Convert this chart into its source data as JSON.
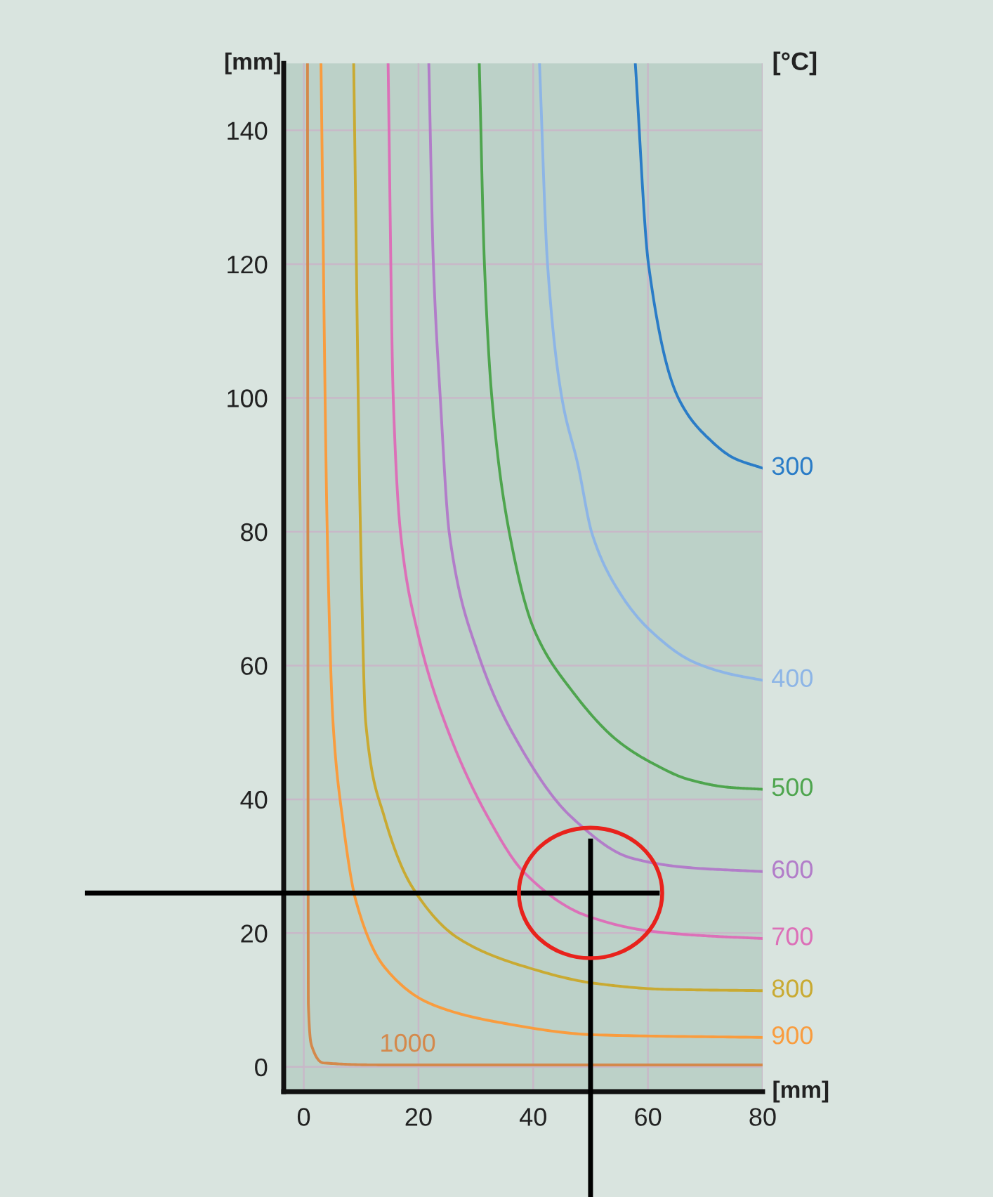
{
  "chart_data": {
    "type": "line",
    "xlabel": "[mm]",
    "ylabel": "[mm]",
    "annotations": [
      "[°C]"
    ],
    "xlim": [
      -3.5,
      80
    ],
    "ylim": [
      -3.7,
      150
    ],
    "xticks": [
      0,
      20,
      40,
      60,
      80
    ],
    "yticks": [
      0,
      20,
      40,
      60,
      80,
      100,
      120,
      140
    ],
    "ref_lines": [
      {
        "axis": "y",
        "value": 26,
        "color": "#000000"
      },
      {
        "axis": "x",
        "value": 50,
        "color": "#000000"
      }
    ],
    "grid": true,
    "legend": false,
    "marker": "none",
    "line_style": "solid",
    "series": [
      {
        "name": "300",
        "color": "#2a7cc7",
        "x": [
          57.8,
          60.1,
          65.3,
          71,
          75,
          80
        ],
        "values": [
          150,
          120,
          100,
          93.6,
          91,
          89.5
        ]
      },
      {
        "name": "400",
        "color": "#8db5e6",
        "x": [
          41.1,
          42.5,
          45,
          47.8,
          50.3,
          55,
          60.1,
          67.8,
          74,
          80
        ],
        "values": [
          150,
          120,
          100,
          90,
          79.6,
          71,
          65.5,
          60.6,
          58.8,
          57.8
        ]
      },
      {
        "name": "500",
        "color": "#4ea54e",
        "x": [
          30.6,
          31.5,
          32.8,
          35.9,
          40.1,
          46.6,
          54.8,
          61,
          67,
          74,
          80
        ],
        "values": [
          150,
          120,
          100,
          79.6,
          65.5,
          56.4,
          48.7,
          45.3,
          43,
          41.8,
          41.5
        ]
      },
      {
        "name": "600",
        "color": "#b27dc9",
        "x": [
          21.8,
          22.6,
          23.8,
          25.4,
          30.3,
          36.8,
          46.6,
          57.2,
          67,
          80
        ],
        "values": [
          150,
          120,
          100,
          79.6,
          62,
          49.3,
          37.4,
          31.2,
          29.8,
          29.2
        ]
      },
      {
        "name": "700",
        "color": "#dc70b8",
        "x": [
          14.7,
          15.6,
          16.9,
          19.7,
          24.6,
          32,
          38.5,
          49,
          60.4,
          70,
          80
        ],
        "values": [
          150,
          100,
          79.6,
          65.5,
          51.5,
          37.5,
          29,
          22.7,
          20.3,
          19.6,
          19.2
        ]
      },
      {
        "name": "800",
        "color": "#c9aa32",
        "x": [
          8.7,
          9.9,
          10.8,
          14,
          18.9,
          27,
          38.5,
          50.7,
          62.9,
          80
        ],
        "values": [
          150,
          79.6,
          51.5,
          37.5,
          26.9,
          19.2,
          15,
          12.5,
          11.6,
          11.4
        ]
      },
      {
        "name": "900",
        "color": "#f99c3e",
        "x": [
          3,
          4.1,
          5.1,
          6.7,
          9.1,
          14,
          22.2,
          34.4,
          50.7,
          80
        ],
        "values": [
          150,
          79.6,
          51.5,
          37.5,
          24.8,
          15,
          9.4,
          6.6,
          4.8,
          4.4
        ]
      },
      {
        "name": "1000",
        "color": "#d4894c",
        "x": [
          0.65,
          0.8,
          1.4,
          3.4,
          14,
          80
        ],
        "values": [
          150,
          9.4,
          3.1,
          0.6,
          0.3,
          0.3
        ]
      }
    ]
  }
}
